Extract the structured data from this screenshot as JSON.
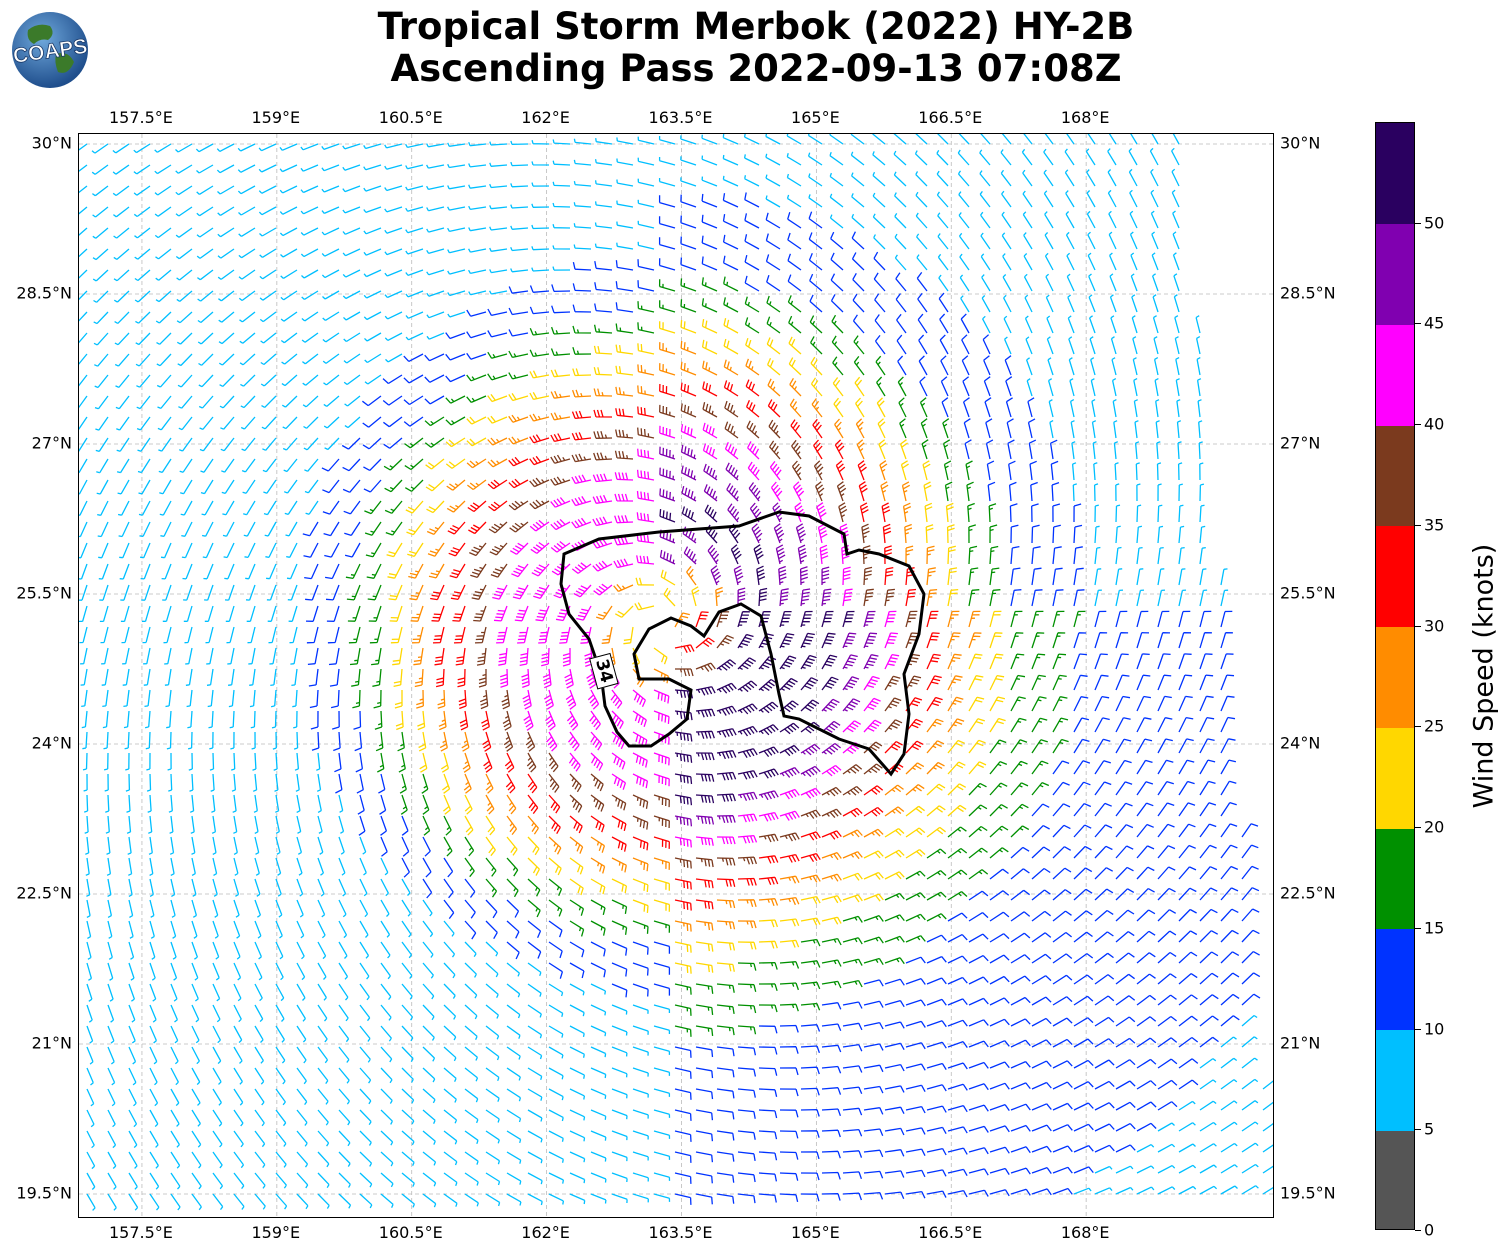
{
  "header": {
    "title_line1": "Tropical Storm Merbok (2022) HY-2B",
    "title_line2": "Ascending Pass 2022-09-13 07:08Z"
  },
  "logo": {
    "text": "COAPS",
    "icon": "globe-logo"
  },
  "map": {
    "lon_range": [
      156.8,
      170.1
    ],
    "lat_range": [
      19.25,
      30.1
    ],
    "lon_ticks": [
      "157.5°E",
      "159°E",
      "160.5°E",
      "162°E",
      "163.5°E",
      "165°E",
      "166.5°E",
      "168°E"
    ],
    "lon_values": [
      157.5,
      159,
      160.5,
      162,
      163.5,
      165,
      166.5,
      168
    ],
    "lat_ticks": [
      "30°N",
      "28.5°N",
      "27°N",
      "25.5°N",
      "24°N",
      "22.5°N",
      "21°N",
      "19.5°N"
    ],
    "lat_values": [
      30,
      28.5,
      27,
      25.5,
      24,
      22.5,
      21,
      19.5
    ],
    "gridlines": true,
    "storm_center": {
      "lon": 163.3,
      "lat": 25.2
    },
    "contour_label": "34"
  },
  "colorbar": {
    "title": "Wind Speed (knots)",
    "ticks": [
      "0",
      "5",
      "10",
      "15",
      "20",
      "25",
      "30",
      "35",
      "40",
      "45",
      "50"
    ],
    "bins": [
      {
        "min": 0,
        "max": 5,
        "color": "#555555"
      },
      {
        "min": 5,
        "max": 10,
        "color": "#00bfff"
      },
      {
        "min": 10,
        "max": 15,
        "color": "#0033ff"
      },
      {
        "min": 15,
        "max": 20,
        "color": "#009000"
      },
      {
        "min": 20,
        "max": 25,
        "color": "#ffd700"
      },
      {
        "min": 25,
        "max": 30,
        "color": "#ff8c00"
      },
      {
        "min": 30,
        "max": 35,
        "color": "#ff0000"
      },
      {
        "min": 35,
        "max": 40,
        "color": "#7b3a1e"
      },
      {
        "min": 40,
        "max": 45,
        "color": "#ff00ff"
      },
      {
        "min": 45,
        "max": 50,
        "color": "#8000b0"
      },
      {
        "min": 50,
        "max": 55,
        "color": "#2a0060"
      }
    ]
  }
}
